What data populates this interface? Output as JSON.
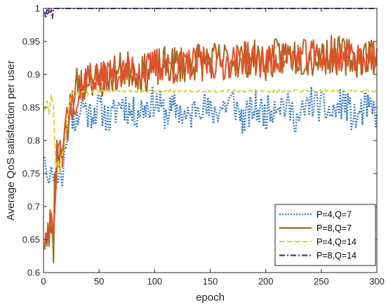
{
  "chart_data": {
    "type": "line",
    "title": "",
    "xlabel": "epoch",
    "ylabel": "Average QoS satisfaction per user",
    "xlim": [
      0,
      300
    ],
    "ylim": [
      0.6,
      1.0
    ],
    "x_ticks": [
      "0",
      "50",
      "100",
      "150",
      "200",
      "250",
      "300"
    ],
    "y_ticks": [
      "0.6",
      "0.65",
      "0.7",
      "0.75",
      "0.8",
      "0.85",
      "0.9",
      "0.95",
      "1"
    ],
    "grid": false,
    "legend_position": "bottom-right",
    "series": [
      {
        "name": "P=4,Q=7",
        "color": "#2E75C8",
        "style": "dotted",
        "points": [
          [
            1,
            0.775
          ],
          [
            3,
            0.745
          ],
          [
            5,
            0.735
          ],
          [
            7,
            0.76
          ],
          [
            9,
            0.74
          ],
          [
            11,
            0.755
          ],
          [
            13,
            0.735
          ],
          [
            15,
            0.76
          ],
          [
            17,
            0.73
          ],
          [
            19,
            0.79
          ],
          [
            21,
            0.81
          ],
          [
            23,
            0.85
          ],
          [
            25,
            0.84
          ],
          [
            30,
            0.83
          ],
          [
            35,
            0.86
          ],
          [
            40,
            0.84
          ],
          [
            50,
            0.85
          ],
          [
            60,
            0.83
          ],
          [
            70,
            0.86
          ],
          [
            80,
            0.84
          ],
          [
            90,
            0.85
          ],
          [
            100,
            0.86
          ],
          [
            110,
            0.84
          ],
          [
            120,
            0.85
          ],
          [
            130,
            0.83
          ],
          [
            140,
            0.86
          ],
          [
            150,
            0.84
          ],
          [
            160,
            0.85
          ],
          [
            170,
            0.86
          ],
          [
            180,
            0.83
          ],
          [
            190,
            0.85
          ],
          [
            200,
            0.84
          ],
          [
            210,
            0.86
          ],
          [
            220,
            0.85
          ],
          [
            230,
            0.83
          ],
          [
            240,
            0.86
          ],
          [
            250,
            0.85
          ],
          [
            260,
            0.84
          ],
          [
            270,
            0.86
          ],
          [
            280,
            0.83
          ],
          [
            290,
            0.85
          ],
          [
            300,
            0.84
          ]
        ],
        "noise": {
          "from_epoch": 20,
          "amplitude": 0.025,
          "seed": 11
        }
      },
      {
        "name": "P=8,Q=7",
        "color": "#A8651E",
        "style": "solid",
        "points": [
          [
            1,
            0.635
          ],
          [
            2,
            0.66
          ],
          [
            3,
            0.64
          ],
          [
            4,
            0.675
          ],
          [
            5,
            0.64
          ],
          [
            6,
            0.695
          ],
          [
            7,
            0.66
          ],
          [
            8,
            0.67
          ],
          [
            9,
            0.615
          ],
          [
            10,
            0.75
          ],
          [
            11,
            0.73
          ],
          [
            12,
            0.8
          ],
          [
            13,
            0.78
          ],
          [
            14,
            0.76
          ],
          [
            15,
            0.79
          ],
          [
            17,
            0.78
          ],
          [
            20,
            0.83
          ],
          [
            22,
            0.8
          ],
          [
            24,
            0.87
          ],
          [
            26,
            0.84
          ],
          [
            28,
            0.86
          ],
          [
            30,
            0.89
          ],
          [
            35,
            0.88
          ],
          [
            40,
            0.9
          ],
          [
            50,
            0.89
          ],
          [
            60,
            0.9
          ],
          [
            70,
            0.905
          ],
          [
            80,
            0.91
          ],
          [
            90,
            0.9
          ],
          [
            100,
            0.91
          ],
          [
            120,
            0.915
          ],
          [
            140,
            0.92
          ],
          [
            160,
            0.92
          ],
          [
            180,
            0.925
          ],
          [
            200,
            0.92
          ],
          [
            220,
            0.93
          ],
          [
            240,
            0.925
          ],
          [
            260,
            0.93
          ],
          [
            280,
            0.925
          ],
          [
            300,
            0.93
          ]
        ],
        "noise": {
          "from_epoch": 25,
          "amplitude": 0.03,
          "seed": 23
        }
      },
      {
        "name": "P=8,Q=7 (overlay)",
        "color": "#E4502A",
        "style": "solid",
        "points": [
          [
            1,
            0.64
          ],
          [
            3,
            0.66
          ],
          [
            5,
            0.65
          ],
          [
            7,
            0.69
          ],
          [
            9,
            0.66
          ],
          [
            11,
            0.72
          ],
          [
            13,
            0.79
          ],
          [
            15,
            0.8
          ],
          [
            17,
            0.76
          ],
          [
            19,
            0.82
          ],
          [
            21,
            0.85
          ],
          [
            23,
            0.83
          ],
          [
            25,
            0.87
          ],
          [
            30,
            0.86
          ],
          [
            35,
            0.88
          ],
          [
            40,
            0.9
          ],
          [
            50,
            0.89
          ],
          [
            60,
            0.905
          ],
          [
            70,
            0.9
          ],
          [
            80,
            0.91
          ],
          [
            90,
            0.905
          ],
          [
            100,
            0.915
          ],
          [
            120,
            0.91
          ],
          [
            140,
            0.92
          ],
          [
            160,
            0.915
          ],
          [
            180,
            0.925
          ],
          [
            200,
            0.92
          ],
          [
            220,
            0.925
          ],
          [
            240,
            0.93
          ],
          [
            260,
            0.925
          ],
          [
            280,
            0.93
          ],
          [
            300,
            0.925
          ]
        ],
        "noise": {
          "from_epoch": 25,
          "amplitude": 0.025,
          "seed": 37
        }
      },
      {
        "name": "P=4,Q=14",
        "color": "#D4D63A",
        "style": "dashed",
        "points": [
          [
            1,
            0.845
          ],
          [
            3,
            0.86
          ],
          [
            5,
            0.84
          ],
          [
            7,
            0.87
          ],
          [
            9,
            0.85
          ],
          [
            11,
            0.76
          ],
          [
            13,
            0.77
          ],
          [
            15,
            0.75
          ],
          [
            17,
            0.78
          ],
          [
            19,
            0.79
          ],
          [
            21,
            0.83
          ],
          [
            23,
            0.85
          ],
          [
            25,
            0.87
          ],
          [
            28,
            0.875
          ],
          [
            32,
            0.87
          ],
          [
            36,
            0.875
          ],
          [
            40,
            0.872
          ],
          [
            45,
            0.875
          ],
          [
            50,
            0.875
          ],
          [
            60,
            0.875
          ],
          [
            80,
            0.875
          ],
          [
            100,
            0.875
          ],
          [
            120,
            0.875
          ],
          [
            140,
            0.875
          ],
          [
            160,
            0.875
          ],
          [
            180,
            0.875
          ],
          [
            200,
            0.875
          ],
          [
            220,
            0.875
          ],
          [
            240,
            0.875
          ],
          [
            260,
            0.875
          ],
          [
            280,
            0.875
          ],
          [
            300,
            0.875
          ]
        ],
        "noise": {
          "from_epoch": 30,
          "amplitude": 0.002,
          "seed": 5
        }
      },
      {
        "name": "P=8,Q=14",
        "color": "#5B2C8F",
        "style": "dashdot",
        "points": [
          [
            1,
            0.995
          ],
          [
            2,
            0.985
          ],
          [
            3,
            0.998
          ],
          [
            4,
            0.99
          ],
          [
            5,
            1.0
          ],
          [
            6,
            0.992
          ],
          [
            7,
            0.998
          ],
          [
            8,
            0.985
          ],
          [
            9,
            1.0
          ],
          [
            10,
            1.0
          ],
          [
            20,
            1.0
          ],
          [
            50,
            1.0
          ],
          [
            100,
            1.0
          ],
          [
            150,
            1.0
          ],
          [
            200,
            1.0
          ],
          [
            250,
            1.0
          ],
          [
            300,
            1.0
          ]
        ],
        "noise": {
          "from_epoch": 400,
          "amplitude": 0.0,
          "seed": 1
        }
      }
    ],
    "legend": [
      {
        "label": "P=4,Q=7",
        "color": "#2E75C8",
        "style": "dotted"
      },
      {
        "label": "P=8,Q=7",
        "color": "#A8651E",
        "style": "solid"
      },
      {
        "label": "P=4,Q=14",
        "color": "#D4D63A",
        "style": "dashed"
      },
      {
        "label": "P=8,Q=14",
        "color": "#5B2C8F",
        "style": "dashdot"
      }
    ]
  }
}
